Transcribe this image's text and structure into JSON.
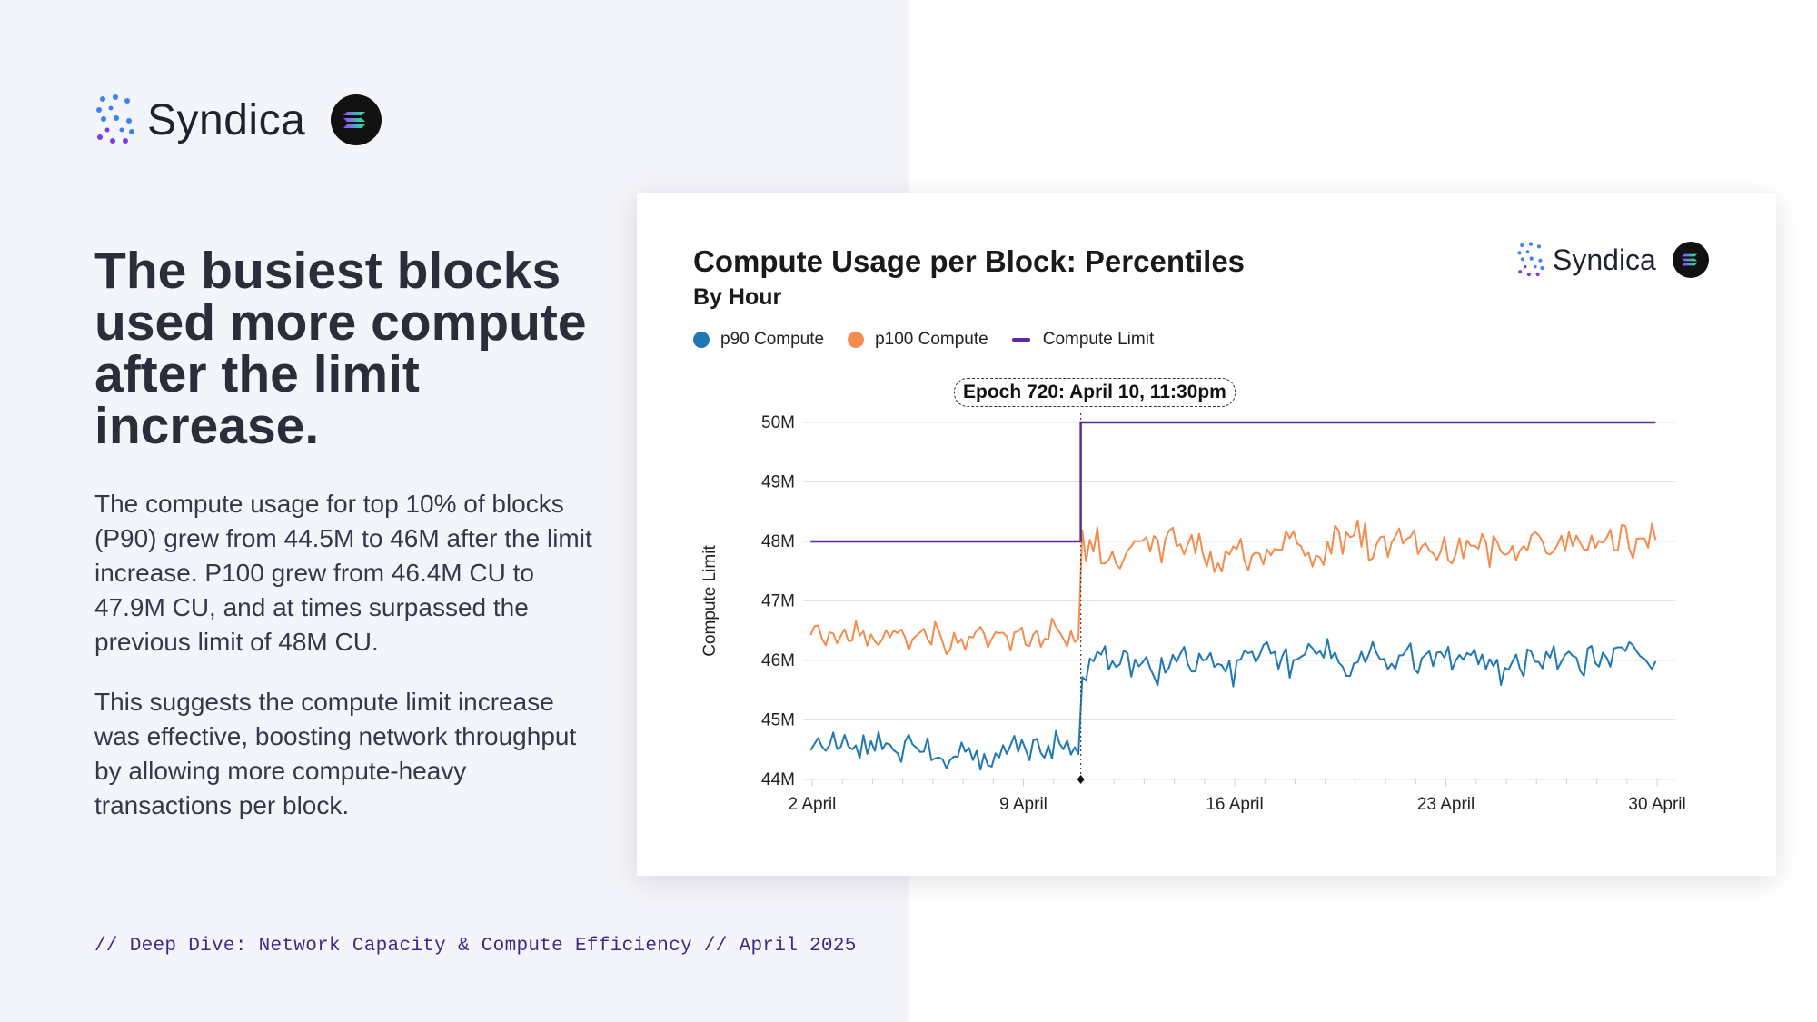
{
  "brand": {
    "name": "Syndica"
  },
  "headline": "The busiest blocks used more compute after the limit increase.",
  "paragraphs": [
    "The compute usage for top 10% of blocks (P90) grew from 44.5M to 46M after the limit increase. P100 grew from 46.4M CU to 47.9M CU, and at times surpassed the previous limit of 48M CU.",
    "This suggests the compute limit increase was effective, boosting network throughput by allowing more compute-heavy transactions per block."
  ],
  "footer": "// Deep Dive: Network Capacity & Compute Efficiency // April 2025",
  "colors": {
    "p90": "#1f77b4",
    "p100": "#f58b4c",
    "limit": "#5b2aa6",
    "brand_accent": "#3b2a86"
  },
  "chart_data": {
    "type": "line",
    "title": "Compute Usage per Block: Percentiles",
    "subtitle": "By Hour",
    "ylabel": "Compute Limit",
    "xlabel": "",
    "ylim": [
      44,
      50
    ],
    "y_ticks": [
      "44M",
      "45M",
      "46M",
      "47M",
      "48M",
      "49M",
      "50M"
    ],
    "x_range_days": [
      1.7,
      30.6
    ],
    "x_ticks": [
      {
        "day": 2,
        "label": "2 April"
      },
      {
        "day": 9,
        "label": "9 April"
      },
      {
        "day": 16,
        "label": "16 April"
      },
      {
        "day": 23,
        "label": "23 April"
      },
      {
        "day": 30,
        "label": "30 April"
      }
    ],
    "annotation": {
      "label": "Epoch 720: April 10, 11:30pm",
      "day": 10.9
    },
    "series": [
      {
        "name": "p90 Compute",
        "key": "p90",
        "start_day": 1.95,
        "end_day": 29.95,
        "step_days": 0.125,
        "segments": [
          {
            "until_day": 10.9,
            "mean": 44.5,
            "noise": 0.22
          },
          {
            "until_day": 30,
            "mean": 46.0,
            "noise": 0.26
          }
        ]
      },
      {
        "name": "p100 Compute",
        "key": "p100",
        "start_day": 1.95,
        "end_day": 29.95,
        "step_days": 0.125,
        "segments": [
          {
            "until_day": 10.9,
            "mean": 46.4,
            "noise": 0.2
          },
          {
            "until_day": 30,
            "mean": 47.9,
            "noise": 0.3
          }
        ]
      },
      {
        "name": "Compute Limit",
        "key": "limit",
        "points": [
          [
            1.95,
            48
          ],
          [
            10.9,
            48
          ],
          [
            10.9,
            50
          ],
          [
            29.95,
            50
          ]
        ]
      }
    ]
  }
}
